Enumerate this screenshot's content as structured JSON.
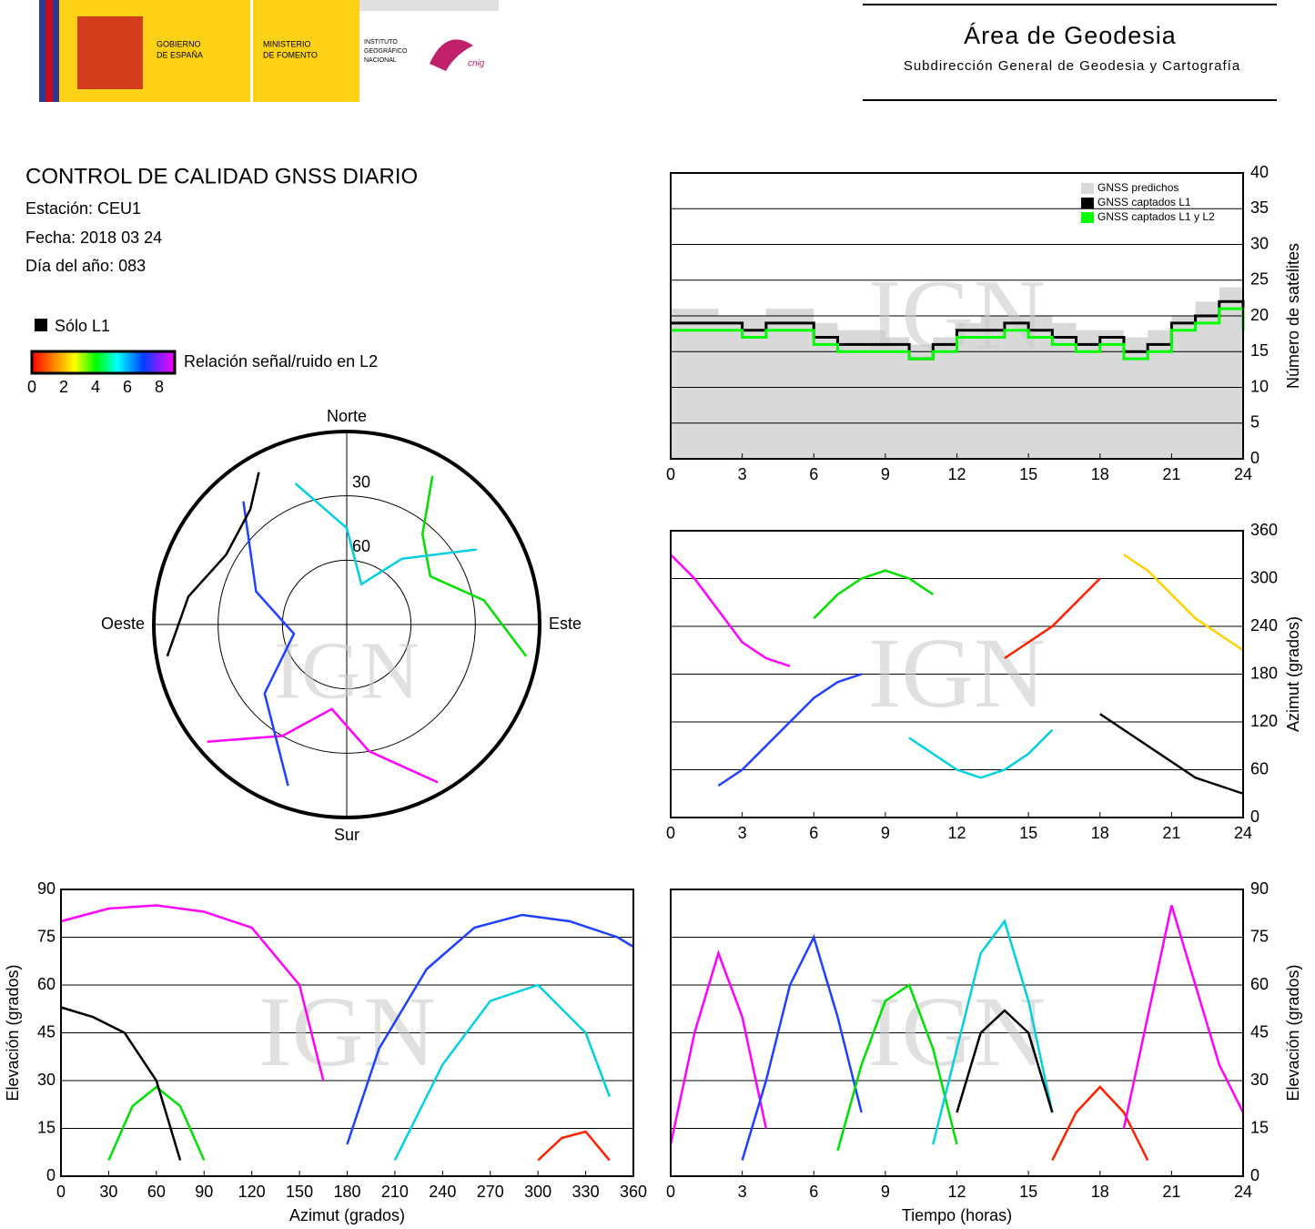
{
  "header": {
    "gobierno": [
      "GOBIERNO",
      "DE ESPAÑA"
    ],
    "ministerio": [
      "MINISTERIO",
      "DE FOMENTO"
    ],
    "instituto": [
      "INSTITUTO",
      "GEOGRÁFICO",
      "NACIONAL"
    ],
    "cnig": "cnig",
    "title": "Área de Geodesia",
    "subtitle": "Subdirección General de Geodesia y Cartografía"
  },
  "info": {
    "title": "CONTROL DE CALIDAD GNSS DIARIO",
    "station": "Estación: CEU1",
    "date": "Fecha: 2018 03 24",
    "doy": "Día del año: 083"
  },
  "legend": {
    "l1_only": "Sólo L1",
    "snr": "Relación señal/ruido en L2",
    "colorbar_ticks": [
      0,
      2,
      4,
      6,
      8
    ]
  },
  "watermark": "IGN",
  "chart_data": [
    {
      "type": "polar",
      "labels": {
        "north": "Norte",
        "south": "Sur",
        "east": "Este",
        "west": "Oeste"
      },
      "rlim": [
        90,
        0
      ],
      "rticks": [
        30,
        60
      ],
      "series": [
        {
          "color": "#ff00ff",
          "azimuth": [
            150,
            170,
            190,
            210,
            230
          ],
          "values": [
            5,
            30,
            50,
            30,
            5
          ]
        },
        {
          "color": "#2040ff",
          "azimuth": [
            200,
            230,
            260,
            290,
            320
          ],
          "values": [
            10,
            40,
            65,
            45,
            15
          ]
        },
        {
          "color": "#00e000",
          "azimuth": [
            100,
            80,
            60,
            40,
            30
          ],
          "values": [
            5,
            25,
            45,
            35,
            10
          ]
        },
        {
          "color": "#000000",
          "azimuth": [
            260,
            280,
            300,
            320,
            330
          ],
          "values": [
            5,
            15,
            25,
            20,
            8
          ]
        },
        {
          "color": "#00d0e0",
          "azimuth": [
            340,
            0,
            20,
            40,
            60
          ],
          "values": [
            20,
            45,
            70,
            50,
            20
          ]
        }
      ]
    },
    {
      "type": "step",
      "x": [
        0,
        1,
        2,
        3,
        4,
        5,
        6,
        7,
        8,
        9,
        10,
        11,
        12,
        13,
        14,
        15,
        16,
        17,
        18,
        19,
        20,
        21,
        22,
        23,
        24
      ],
      "xlim": [
        0,
        24
      ],
      "xticks": [
        0,
        3,
        6,
        9,
        12,
        15,
        18,
        21,
        24
      ],
      "ylim": [
        0,
        40
      ],
      "yticks": [
        0,
        5,
        10,
        15,
        20,
        25,
        30,
        35,
        40
      ],
      "ylabel": "Número de satélites",
      "yaxis_side": "right",
      "grid": true,
      "legend": "upper right",
      "series": [
        {
          "name": "GNSS predichos",
          "color": "#d9d9d9",
          "fill": true,
          "values": [
            21,
            21,
            20,
            20,
            21,
            21,
            19,
            18,
            18,
            17,
            16,
            17,
            19,
            20,
            20,
            20,
            19,
            18,
            18,
            17,
            18,
            20,
            22,
            24,
            21
          ]
        },
        {
          "name": "GNSS captados L1",
          "color": "#000000",
          "values": [
            19,
            19,
            19,
            18,
            19,
            19,
            17,
            16,
            16,
            16,
            14,
            16,
            18,
            18,
            19,
            18,
            17,
            16,
            17,
            15,
            16,
            19,
            20,
            22,
            19
          ]
        },
        {
          "name": "GNSS captados L1 y L2",
          "color": "#00ff00",
          "values": [
            18,
            18,
            18,
            17,
            18,
            18,
            16,
            15,
            15,
            15,
            14,
            15,
            17,
            17,
            18,
            17,
            16,
            15,
            16,
            14,
            15,
            18,
            19,
            21,
            18
          ]
        }
      ]
    },
    {
      "type": "line",
      "xlim": [
        0,
        24
      ],
      "xticks": [
        0,
        3,
        6,
        9,
        12,
        15,
        18,
        21,
        24
      ],
      "ylim": [
        0,
        360
      ],
      "yticks": [
        0,
        60,
        120,
        180,
        240,
        300,
        360
      ],
      "ylabel": "Azimut (grados)",
      "yaxis_side": "right",
      "grid": true,
      "series": [
        {
          "color": "#ff00ff",
          "x": [
            0,
            1,
            2,
            3,
            4,
            5
          ],
          "values": [
            330,
            300,
            260,
            220,
            200,
            190
          ]
        },
        {
          "color": "#2040ff",
          "x": [
            2,
            3,
            4,
            5,
            6,
            7,
            8
          ],
          "values": [
            40,
            60,
            90,
            120,
            150,
            170,
            180
          ]
        },
        {
          "color": "#00e000",
          "x": [
            6,
            7,
            8,
            9,
            10,
            11
          ],
          "values": [
            250,
            280,
            300,
            310,
            300,
            280
          ]
        },
        {
          "color": "#00d0e0",
          "x": [
            10,
            11,
            12,
            13,
            14,
            15,
            16
          ],
          "values": [
            100,
            80,
            60,
            50,
            60,
            80,
            110
          ]
        },
        {
          "color": "#ff2000",
          "x": [
            14,
            15,
            16,
            17,
            18
          ],
          "values": [
            200,
            220,
            240,
            270,
            300
          ]
        },
        {
          "color": "#000000",
          "x": [
            18,
            19,
            20,
            21,
            22,
            23,
            24
          ],
          "values": [
            130,
            110,
            90,
            70,
            50,
            40,
            30
          ]
        },
        {
          "color": "#ffd000",
          "x": [
            19,
            20,
            21,
            22,
            23,
            24
          ],
          "values": [
            330,
            310,
            280,
            250,
            230,
            210
          ]
        }
      ]
    },
    {
      "type": "line",
      "xlim": [
        0,
        360
      ],
      "xticks": [
        0,
        30,
        60,
        90,
        120,
        150,
        180,
        210,
        240,
        270,
        300,
        330,
        360
      ],
      "ylim": [
        0,
        90
      ],
      "yticks": [
        0,
        15,
        30,
        45,
        60,
        75,
        90
      ],
      "xlabel": "Azimut (grados)",
      "ylabel": "Elevación (grados)",
      "yaxis_side": "left",
      "grid": true,
      "series": [
        {
          "color": "#ff00ff",
          "x": [
            0,
            30,
            60,
            90,
            120,
            150,
            165
          ],
          "values": [
            80,
            84,
            85,
            83,
            78,
            60,
            30
          ]
        },
        {
          "color": "#2040ff",
          "x": [
            180,
            200,
            230,
            260,
            290,
            320,
            350,
            360
          ],
          "values": [
            10,
            40,
            65,
            78,
            82,
            80,
            75,
            72
          ]
        },
        {
          "color": "#00e000",
          "x": [
            30,
            45,
            60,
            75,
            90
          ],
          "values": [
            5,
            22,
            28,
            22,
            5
          ]
        },
        {
          "color": "#00d0e0",
          "x": [
            210,
            240,
            270,
            300,
            330,
            345
          ],
          "values": [
            5,
            35,
            55,
            60,
            45,
            25
          ]
        },
        {
          "color": "#000000",
          "x": [
            0,
            20,
            40,
            60,
            75
          ],
          "values": [
            53,
            50,
            45,
            30,
            5
          ]
        },
        {
          "color": "#ff2000",
          "x": [
            300,
            315,
            330,
            345
          ],
          "values": [
            5,
            12,
            14,
            5
          ]
        }
      ]
    },
    {
      "type": "line",
      "xlim": [
        0,
        24
      ],
      "xticks": [
        0,
        3,
        6,
        9,
        12,
        15,
        18,
        21,
        24
      ],
      "ylim": [
        0,
        90
      ],
      "yticks": [
        0,
        15,
        30,
        45,
        60,
        75,
        90
      ],
      "xlabel": "Tiempo (horas)",
      "ylabel": "Elevación (grados)",
      "yaxis_side": "right",
      "grid": true,
      "series": [
        {
          "color": "#ff00ff",
          "x": [
            0,
            1,
            2,
            3,
            4
          ],
          "values": [
            10,
            45,
            70,
            50,
            15
          ]
        },
        {
          "color": "#2040ff",
          "x": [
            3,
            4,
            5,
            6,
            7,
            8
          ],
          "values": [
            5,
            30,
            60,
            75,
            50,
            20
          ]
        },
        {
          "color": "#00e000",
          "x": [
            7,
            8,
            9,
            10,
            11,
            12
          ],
          "values": [
            8,
            35,
            55,
            60,
            40,
            10
          ]
        },
        {
          "color": "#00d0e0",
          "x": [
            11,
            12,
            13,
            14,
            15,
            16
          ],
          "values": [
            10,
            40,
            70,
            80,
            55,
            20
          ]
        },
        {
          "color": "#000000",
          "x": [
            12,
            13,
            14,
            15,
            16
          ],
          "values": [
            20,
            45,
            52,
            45,
            20
          ]
        },
        {
          "color": "#ff2000",
          "x": [
            16,
            17,
            18,
            19,
            20
          ],
          "values": [
            5,
            20,
            28,
            20,
            5
          ]
        },
        {
          "color": "#ff00ff",
          "x": [
            19,
            20,
            21,
            22,
            23,
            24
          ],
          "values": [
            15,
            50,
            85,
            60,
            35,
            20
          ]
        }
      ]
    }
  ]
}
